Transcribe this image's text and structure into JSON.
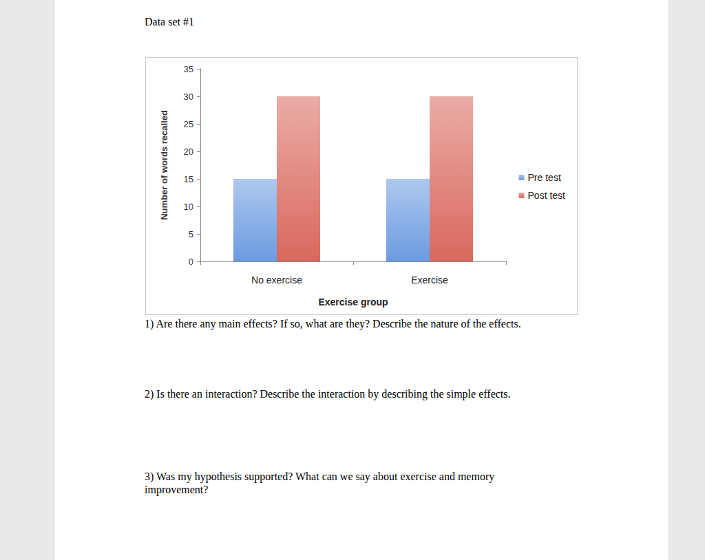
{
  "heading": "Data set #1",
  "chart_data": {
    "type": "bar",
    "categories": [
      "No exercise",
      "Exercise"
    ],
    "series": [
      {
        "name": "Pre test",
        "color": "#6b9be0",
        "values": [
          15,
          15
        ]
      },
      {
        "name": "Post test",
        "color": "#d9685d",
        "values": [
          30,
          30
        ]
      }
    ],
    "xlabel": "Exercise group",
    "ylabel": "Number of words recalled",
    "ylim": [
      0,
      35
    ],
    "yticks": [
      0,
      5,
      10,
      15,
      20,
      25,
      30,
      35
    ],
    "grid": false,
    "legend": "right"
  },
  "questions": [
    [
      "1) Are there any main effects? If so, what are they? Describe the nature of the effects."
    ],
    [
      "2) Is there an interaction? Describe the interaction by describing the simple effects."
    ],
    [
      "3) Was my hypothesis supported? What can we say about exercise and memory",
      "improvement?"
    ]
  ]
}
